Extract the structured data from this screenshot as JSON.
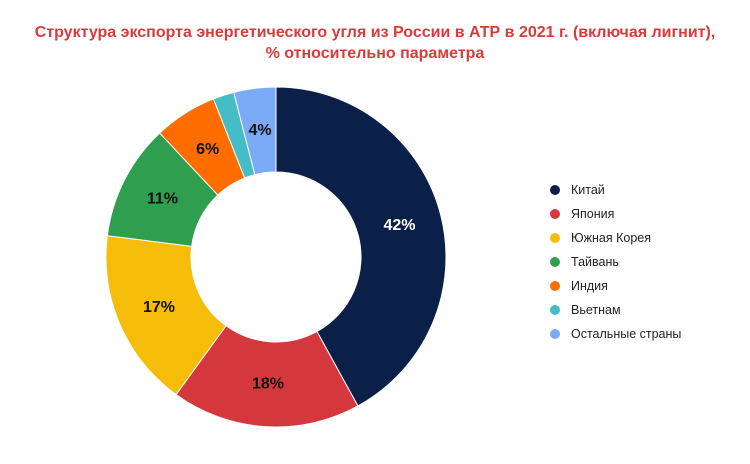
{
  "chart_data": {
    "type": "pie",
    "variant": "donut",
    "title": "Структура экспорта энергетического угля из России в АТР в 2021 г. (включая лигнит),",
    "subtitle": "% относительно параметра",
    "title_color": "#d93a3a",
    "legend_position": "right",
    "slices": [
      {
        "name": "Китай",
        "value": 42,
        "label": "42%",
        "color": "#0b2048",
        "label_color": "#ffffff"
      },
      {
        "name": "Япония",
        "value": 18,
        "label": "18%",
        "color": "#d4383c",
        "label_color": "#111111"
      },
      {
        "name": "Южная Корея",
        "value": 17,
        "label": "17%",
        "color": "#f5bd0a",
        "label_color": "#111111"
      },
      {
        "name": "Тайвань",
        "value": 11,
        "label": "11%",
        "color": "#2f9e4f",
        "label_color": "#111111"
      },
      {
        "name": "Индия",
        "value": 6,
        "label": "6%",
        "color": "#ff6d00",
        "label_color": "#111111"
      },
      {
        "name": "Вьетнам",
        "value": 2,
        "label": "",
        "color": "#46bdc6",
        "label_color": "#111111"
      },
      {
        "name": "Остальные страны",
        "value": 4,
        "label": "4%",
        "color": "#7baaf7",
        "label_color": "#111111"
      }
    ]
  }
}
